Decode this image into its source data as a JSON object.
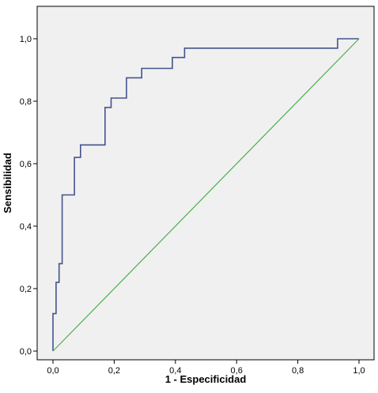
{
  "chart_data": {
    "type": "line",
    "title": "",
    "xlabel": "1 - Especificidad",
    "ylabel": "Sensibilidad",
    "xlim": [
      0.0,
      1.0
    ],
    "ylim": [
      0.0,
      1.0
    ],
    "x_ticks": [
      "0,0",
      "0,2",
      "0,4",
      "0,6",
      "0,8",
      "1,0"
    ],
    "y_ticks": [
      "0,0",
      "0,2",
      "0,4",
      "0,6",
      "0,8",
      "1,0"
    ],
    "grid": false,
    "series": [
      {
        "color": "#44548c",
        "style": "step",
        "x": [
          0.0,
          0.0,
          0.01,
          0.01,
          0.02,
          0.02,
          0.03,
          0.03,
          0.07,
          0.07,
          0.09,
          0.09,
          0.17,
          0.17,
          0.19,
          0.19,
          0.24,
          0.24,
          0.29,
          0.29,
          0.39,
          0.39,
          0.43,
          0.43,
          0.93,
          0.93,
          1.0
        ],
        "y": [
          0.0,
          0.12,
          0.12,
          0.22,
          0.22,
          0.28,
          0.28,
          0.5,
          0.5,
          0.62,
          0.62,
          0.66,
          0.66,
          0.78,
          0.78,
          0.81,
          0.81,
          0.875,
          0.875,
          0.905,
          0.905,
          0.94,
          0.94,
          0.97,
          0.97,
          1.0,
          1.0
        ]
      },
      {
        "color": "#4caf50",
        "style": "line",
        "x": [
          0.0,
          1.0
        ],
        "y": [
          0.0,
          1.0
        ]
      }
    ],
    "colors": {
      "plot_background": "#f0f0f0",
      "frame": "#000000"
    }
  }
}
